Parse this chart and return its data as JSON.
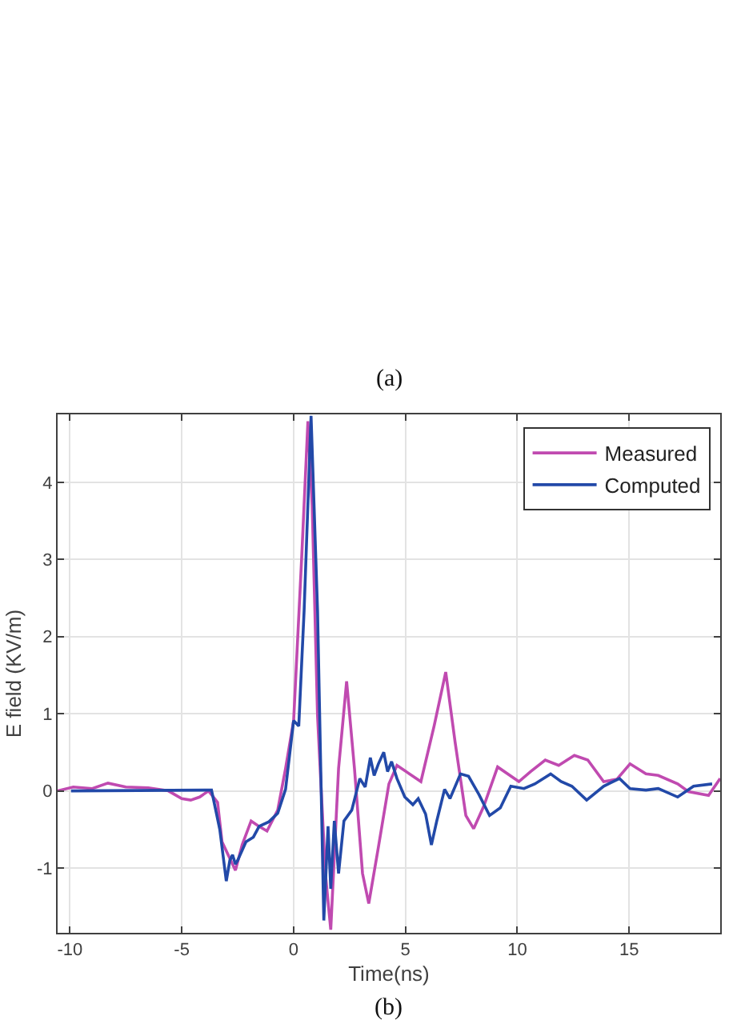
{
  "chart_data": {
    "type": "line",
    "xlabel": "Time(ns)",
    "ylabel": "E field (KV/m)",
    "annotations": [
      "(a)",
      "(b)"
    ],
    "series": [
      {
        "name": "Measured",
        "color": "#c04ab0",
        "x": [
          -10.55,
          -9.85,
          -9.0,
          -8.3,
          -7.5,
          -6.5,
          -5.6,
          -5.0,
          -4.6,
          -4.2,
          -3.8,
          -3.4,
          -3.2,
          -2.6,
          -2.3,
          -1.9,
          -1.6,
          -1.19,
          -0.71,
          -0.36,
          0,
          0.36,
          0.64,
          0.83,
          1.07,
          1.42,
          1.66,
          2.01,
          2.37,
          2.72,
          3.08,
          3.36,
          3.79,
          4.26,
          4.62,
          5.69,
          6.28,
          6.8,
          7.22,
          7.7,
          8.05,
          8.5,
          9.12,
          10.07,
          10.6,
          11.25,
          11.85,
          12.55,
          13.15,
          13.86,
          14.45,
          15.04,
          15.75,
          16.3,
          17.17,
          17.65,
          18.55,
          19.07
        ],
        "values": [
          0.0,
          0.05,
          0.03,
          0.1,
          0.05,
          0.04,
          0.0,
          -0.1,
          -0.12,
          -0.08,
          0.0,
          -0.15,
          -0.66,
          -1.03,
          -0.7,
          -0.39,
          -0.45,
          -0.52,
          -0.25,
          0.29,
          0.91,
          3.02,
          4.79,
          3.7,
          0.97,
          -1.07,
          -1.8,
          0.29,
          1.42,
          0.29,
          -1.07,
          -1.46,
          -0.73,
          0.09,
          0.33,
          0.12,
          0.84,
          1.54,
          0.63,
          -0.32,
          -0.49,
          -0.2,
          0.31,
          0.12,
          0.25,
          0.4,
          0.33,
          0.46,
          0.4,
          0.12,
          0.15,
          0.35,
          0.22,
          0.2,
          0.09,
          -0.01,
          -0.06,
          0.16
        ]
      },
      {
        "name": "Computed",
        "color": "#2249a8",
        "x": [
          -9.95,
          -3.67,
          -3.3,
          -3.01,
          -2.85,
          -2.73,
          -2.6,
          -2.5,
          -2.13,
          -1.8,
          -1.54,
          -1.1,
          -0.71,
          -0.36,
          0,
          0.23,
          0.47,
          0.78,
          1.07,
          1.35,
          1.54,
          1.66,
          1.82,
          2.01,
          2.25,
          2.6,
          2.96,
          3.2,
          3.43,
          3.6,
          3.79,
          4.03,
          4.2,
          4.38,
          4.62,
          4.97,
          5.33,
          5.57,
          5.9,
          6.16,
          6.4,
          6.75,
          6.99,
          7.46,
          7.82,
          8.29,
          8.76,
          9.24,
          9.71,
          10.3,
          10.78,
          11.49,
          11.96,
          12.44,
          13.1,
          13.86,
          14.57,
          15.04,
          15.75,
          16.3,
          17.17,
          17.88,
          18.71
        ],
        "values": [
          0,
          0.01,
          -0.5,
          -1.17,
          -0.9,
          -0.83,
          -0.95,
          -0.9,
          -0.66,
          -0.6,
          -0.46,
          -0.4,
          -0.29,
          0.02,
          0.91,
          0.84,
          2.34,
          4.86,
          2.34,
          -1.68,
          -0.46,
          -1.27,
          -0.39,
          -1.07,
          -0.39,
          -0.25,
          0.16,
          0.05,
          0.43,
          0.2,
          0.35,
          0.5,
          0.25,
          0.38,
          0.16,
          -0.08,
          -0.18,
          -0.1,
          -0.3,
          -0.7,
          -0.39,
          0.02,
          -0.1,
          0.22,
          0.19,
          -0.05,
          -0.32,
          -0.22,
          0.06,
          0.03,
          0.09,
          0.22,
          0.12,
          0.06,
          -0.12,
          0.06,
          0.16,
          0.03,
          0.01,
          0.03,
          -0.08,
          0.06,
          0.09
        ]
      }
    ],
    "xlim": [
      -10.55,
      19.07
    ],
    "ylim": [
      -1.84,
      4.88
    ],
    "xticks": [
      -10,
      -5,
      0,
      5,
      10,
      15
    ],
    "yticks": [
      -1,
      0,
      1,
      2,
      3,
      4
    ],
    "grid": true,
    "legend": "top right",
    "line_style": "solid"
  }
}
